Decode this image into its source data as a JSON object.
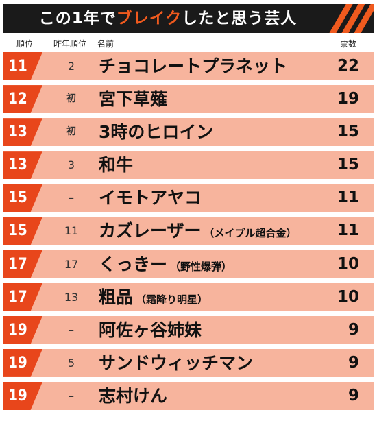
{
  "title": {
    "pre": "この1年で",
    "accent": "ブレイク",
    "post": "したと思う芸人"
  },
  "colors": {
    "accent": "#e8461b",
    "row_bg": "#f7b49d",
    "title_bg": "#1a1a1a"
  },
  "headers": {
    "rank": "順位",
    "prev": "昨年順位",
    "name": "名前",
    "votes": "票数"
  },
  "rows": [
    {
      "rank": "11",
      "prev": "2",
      "name": "チョコレートプラネット",
      "note": "",
      "votes": "22"
    },
    {
      "rank": "12",
      "prev": "初",
      "name": "宮下草薙",
      "note": "",
      "votes": "19"
    },
    {
      "rank": "13",
      "prev": "初",
      "name": "3時のヒロイン",
      "note": "",
      "votes": "15"
    },
    {
      "rank": "13",
      "prev": "3",
      "name": "和牛",
      "note": "",
      "votes": "15"
    },
    {
      "rank": "15",
      "prev": "–",
      "name": "イモトアヤコ",
      "note": "",
      "votes": "11"
    },
    {
      "rank": "15",
      "prev": "11",
      "name": "カズレーザー",
      "note": "（メイプル超合金）",
      "votes": "11"
    },
    {
      "rank": "17",
      "prev": "17",
      "name": "くっきー",
      "note": "（野性爆弾）",
      "votes": "10"
    },
    {
      "rank": "17",
      "prev": "13",
      "name": "粗品",
      "note": "（霜降り明星）",
      "votes": "10"
    },
    {
      "rank": "19",
      "prev": "–",
      "name": "阿佐ヶ谷姉妹",
      "note": "",
      "votes": "9"
    },
    {
      "rank": "19",
      "prev": "5",
      "name": "サンドウィッチマン",
      "note": "",
      "votes": "9"
    },
    {
      "rank": "19",
      "prev": "–",
      "name": "志村けん",
      "note": "",
      "votes": "9"
    }
  ]
}
